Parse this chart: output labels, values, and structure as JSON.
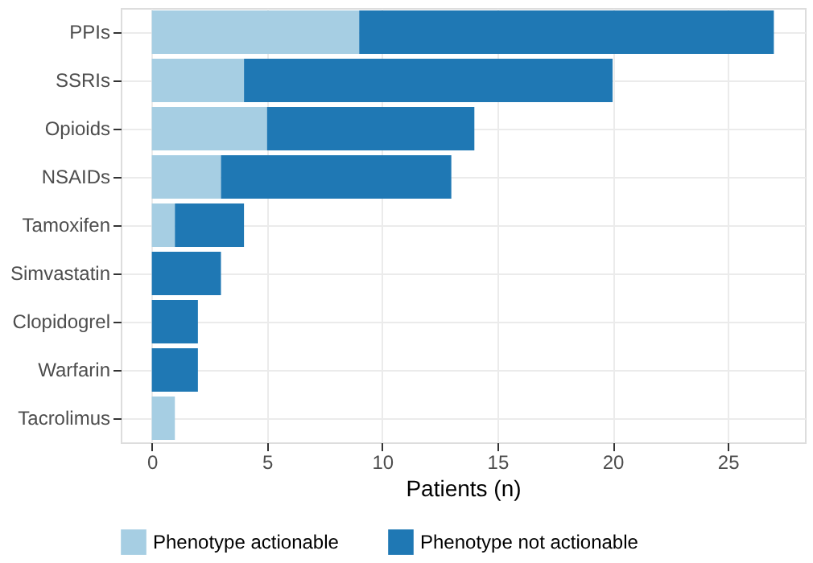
{
  "chart_data": {
    "type": "bar",
    "orientation": "horizontal",
    "stacked": true,
    "xlabel": "Patients (n)",
    "categories": [
      "PPIs",
      "SSRIs",
      "Opioids",
      "NSAIDs",
      "Tamoxifen",
      "Simvastatin",
      "Clopidogrel",
      "Warfarin",
      "Tacrolimus"
    ],
    "series": [
      {
        "name": "Phenotype actionable",
        "color": "#a6cee3",
        "values": [
          9,
          4,
          5,
          3,
          1,
          0,
          0,
          0,
          1
        ]
      },
      {
        "name": "Phenotype not actionable",
        "color": "#1f78b4",
        "values": [
          18,
          16,
          9,
          10,
          3,
          3,
          2,
          2,
          0
        ]
      }
    ],
    "xlim": [
      -1.35,
      28.35
    ],
    "xticks": [
      0,
      5,
      10,
      15,
      20,
      25
    ],
    "grid": true,
    "legend": "bottom"
  }
}
